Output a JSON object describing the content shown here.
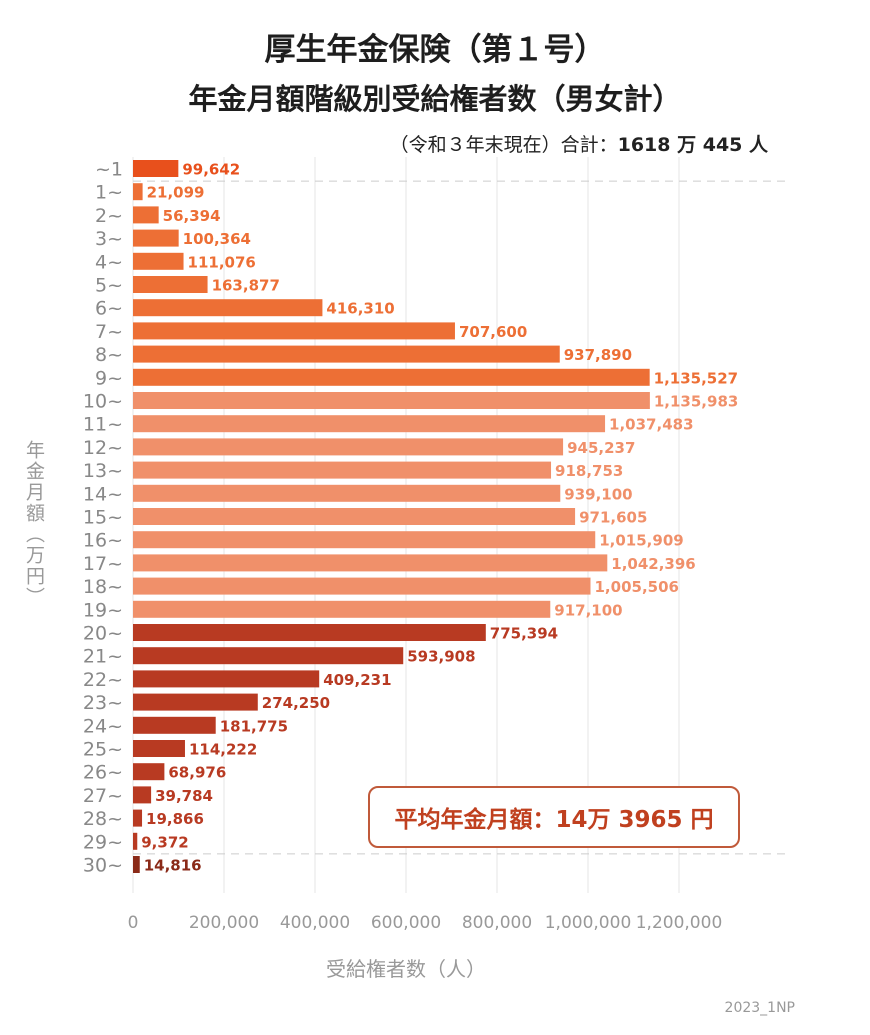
{
  "title_line1": "厚生年金保険（第１号）",
  "title_line2": "年金月額階級別受給権者数（男女計）",
  "subtitle_prefix": "（令和３年末現在）合計：",
  "subtitle_total": "1618 万 445 人",
  "ylabel": "年金月額（万円）",
  "xlabel": "受給権者数（人）",
  "avg_label": "平均年金月額：14万 3965 円",
  "credit": "2023_1NP",
  "colors": {
    "dark_orange": "#e8501c",
    "orange": "#ed6f35",
    "light_orange": "#f0906a",
    "brown": "#b83a22",
    "dark_brown": "#8a2a18"
  },
  "chart_data": {
    "type": "bar",
    "orientation": "horizontal",
    "categories": [
      "~1",
      "1~",
      "2~",
      "3~",
      "4~",
      "5~",
      "6~",
      "7~",
      "8~",
      "9~",
      "10~",
      "11~",
      "12~",
      "13~",
      "14~",
      "15~",
      "16~",
      "17~",
      "18~",
      "19~",
      "20~",
      "21~",
      "22~",
      "23~",
      "24~",
      "25~",
      "26~",
      "27~",
      "28~",
      "29~",
      "30~"
    ],
    "values": [
      99642,
      21099,
      56394,
      100364,
      111076,
      163877,
      416310,
      707600,
      937890,
      1135527,
      1135983,
      1037483,
      945237,
      918753,
      939100,
      971605,
      1015909,
      1042396,
      1005506,
      917100,
      775394,
      593908,
      409231,
      274250,
      181775,
      114222,
      68976,
      39784,
      19866,
      9372,
      14816
    ],
    "value_labels": [
      "99,642",
      "21,099",
      "56,394",
      "100,364",
      "111,076",
      "163,877",
      "416,310",
      "707,600",
      "937,890",
      "1,135,527",
      "1,135,983",
      "1,037,483",
      "945,237",
      "918,753",
      "939,100",
      "971,605",
      "1,015,909",
      "1,042,396",
      "1,005,506",
      "917,100",
      "775,394",
      "593,908",
      "409,231",
      "274,250",
      "181,775",
      "114,222",
      "68,976",
      "39,784",
      "19,866",
      "9,372",
      "14,816"
    ],
    "bar_colors": [
      "#e8501c",
      "#ed6f35",
      "#ed6f35",
      "#ed6f35",
      "#ed6f35",
      "#ed6f35",
      "#ed6f35",
      "#ed6f35",
      "#ed6f35",
      "#ed6f35",
      "#f0906a",
      "#f0906a",
      "#f0906a",
      "#f0906a",
      "#f0906a",
      "#f0906a",
      "#f0906a",
      "#f0906a",
      "#f0906a",
      "#f0906a",
      "#b83a22",
      "#b83a22",
      "#b83a22",
      "#b83a22",
      "#b83a22",
      "#b83a22",
      "#b83a22",
      "#b83a22",
      "#b83a22",
      "#b83a22",
      "#8a2a18"
    ],
    "x_ticks": [
      "0",
      "200,000",
      "400,000",
      "600,000",
      "800,000",
      "1,000,000",
      "1,200,000"
    ],
    "xlim": [
      0,
      1200000
    ],
    "grid": true
  }
}
